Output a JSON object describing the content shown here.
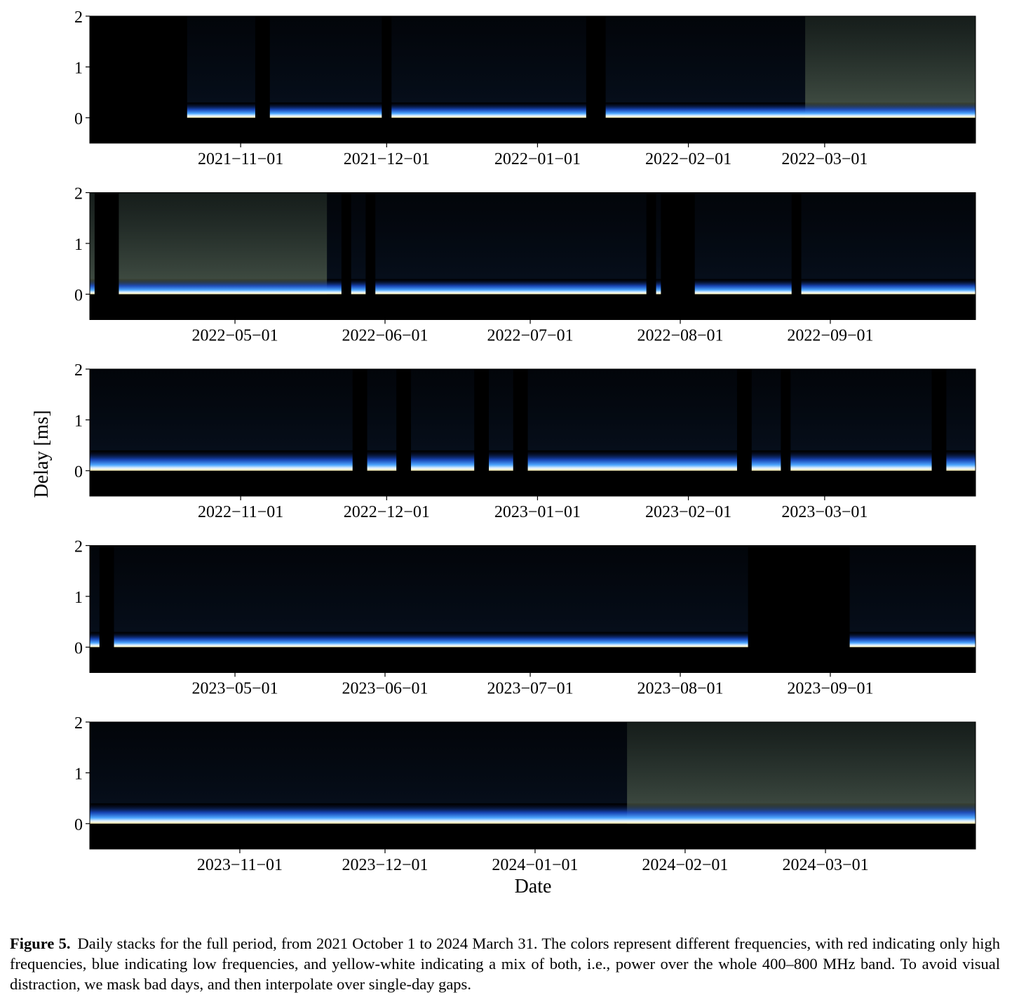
{
  "figure": {
    "ylabel": "Delay [ms]",
    "xlabel": "Date",
    "ytick_labels": [
      "2",
      "1",
      "0"
    ],
    "ylim": [
      -0.5,
      2.0
    ]
  },
  "chart_data": [
    {
      "type": "heatmap",
      "xlim": [
        "2021-10-01",
        "2022-03-31"
      ],
      "ylim": [
        -0.5,
        2.0
      ],
      "y_ticks": [
        0,
        1,
        2
      ],
      "x_ticks": [
        "2021-11-01",
        "2021-12-01",
        "2022-01-01",
        "2022-02-01",
        "2022-03-01"
      ],
      "masked_date_ranges": [
        [
          "2021-10-01",
          "2021-10-20"
        ],
        [
          "2021-11-04",
          "2021-11-06"
        ],
        [
          "2021-11-30",
          "2021-12-01"
        ],
        [
          "2022-01-11",
          "2022-01-14"
        ]
      ],
      "signal": {
        "band_top_ms": 0.3,
        "scatter_from": "2022-02-25"
      }
    },
    {
      "type": "heatmap",
      "xlim": [
        "2022-04-01",
        "2022-09-30"
      ],
      "ylim": [
        -0.5,
        2.0
      ],
      "y_ticks": [
        0,
        1,
        2
      ],
      "x_ticks": [
        "2022-05-01",
        "2022-06-01",
        "2022-07-01",
        "2022-08-01",
        "2022-09-01"
      ],
      "masked_date_ranges": [
        [
          "2022-04-02",
          "2022-04-06"
        ],
        [
          "2022-05-23",
          "2022-05-24"
        ],
        [
          "2022-05-28",
          "2022-05-29"
        ],
        [
          "2022-07-25",
          "2022-07-26"
        ],
        [
          "2022-07-28",
          "2022-08-03"
        ],
        [
          "2022-08-24",
          "2022-08-25"
        ]
      ],
      "signal": {
        "band_top_ms": 0.3,
        "scatter_until": "2022-05-20"
      }
    },
    {
      "type": "heatmap",
      "xlim": [
        "2022-10-01",
        "2023-03-31"
      ],
      "ylim": [
        -0.5,
        2.0
      ],
      "y_ticks": [
        0,
        1,
        2
      ],
      "x_ticks": [
        "2022-11-01",
        "2022-12-01",
        "2023-01-01",
        "2023-02-01",
        "2023-03-01"
      ],
      "masked_date_ranges": [
        [
          "2022-11-24",
          "2022-11-26"
        ],
        [
          "2022-12-03",
          "2022-12-05"
        ],
        [
          "2022-12-19",
          "2022-12-21"
        ],
        [
          "2022-12-27",
          "2022-12-29"
        ],
        [
          "2023-02-11",
          "2023-02-13"
        ],
        [
          "2023-02-20",
          "2023-02-21"
        ],
        [
          "2023-03-23",
          "2023-03-25"
        ]
      ],
      "signal": {
        "band_top_ms": 0.4
      }
    },
    {
      "type": "heatmap",
      "xlim": [
        "2023-04-01",
        "2023-09-30"
      ],
      "ylim": [
        -0.5,
        2.0
      ],
      "y_ticks": [
        0,
        1,
        2
      ],
      "x_ticks": [
        "2023-05-01",
        "2023-06-01",
        "2023-07-01",
        "2023-08-01",
        "2023-09-01"
      ],
      "masked_date_ranges": [
        [
          "2023-04-03",
          "2023-04-05"
        ],
        [
          "2023-08-15",
          "2023-09-04"
        ]
      ],
      "signal": {
        "band_top_ms": 0.3
      }
    },
    {
      "type": "heatmap",
      "xlim": [
        "2023-10-01",
        "2024-03-31"
      ],
      "ylim": [
        -0.5,
        2.0
      ],
      "y_ticks": [
        0,
        1,
        2
      ],
      "x_ticks": [
        "2023-11-01",
        "2023-12-01",
        "2024-01-01",
        "2024-02-01",
        "2024-03-01"
      ],
      "masked_date_ranges": [],
      "signal": {
        "band_top_ms": 0.4,
        "scatter_from": "2024-01-20"
      }
    }
  ],
  "caption": {
    "label": "Figure 5.",
    "text": "Daily stacks for the full period, from 2021 October 1 to 2024 March 31. The colors represent different frequencies, with red indicating only high frequencies, blue indicating low frequencies, and yellow-white indicating a mix of both, i.e., power over the whole 400–800 MHz band. To avoid visual distraction, we mask bad days, and then interpolate over single-day gaps."
  }
}
